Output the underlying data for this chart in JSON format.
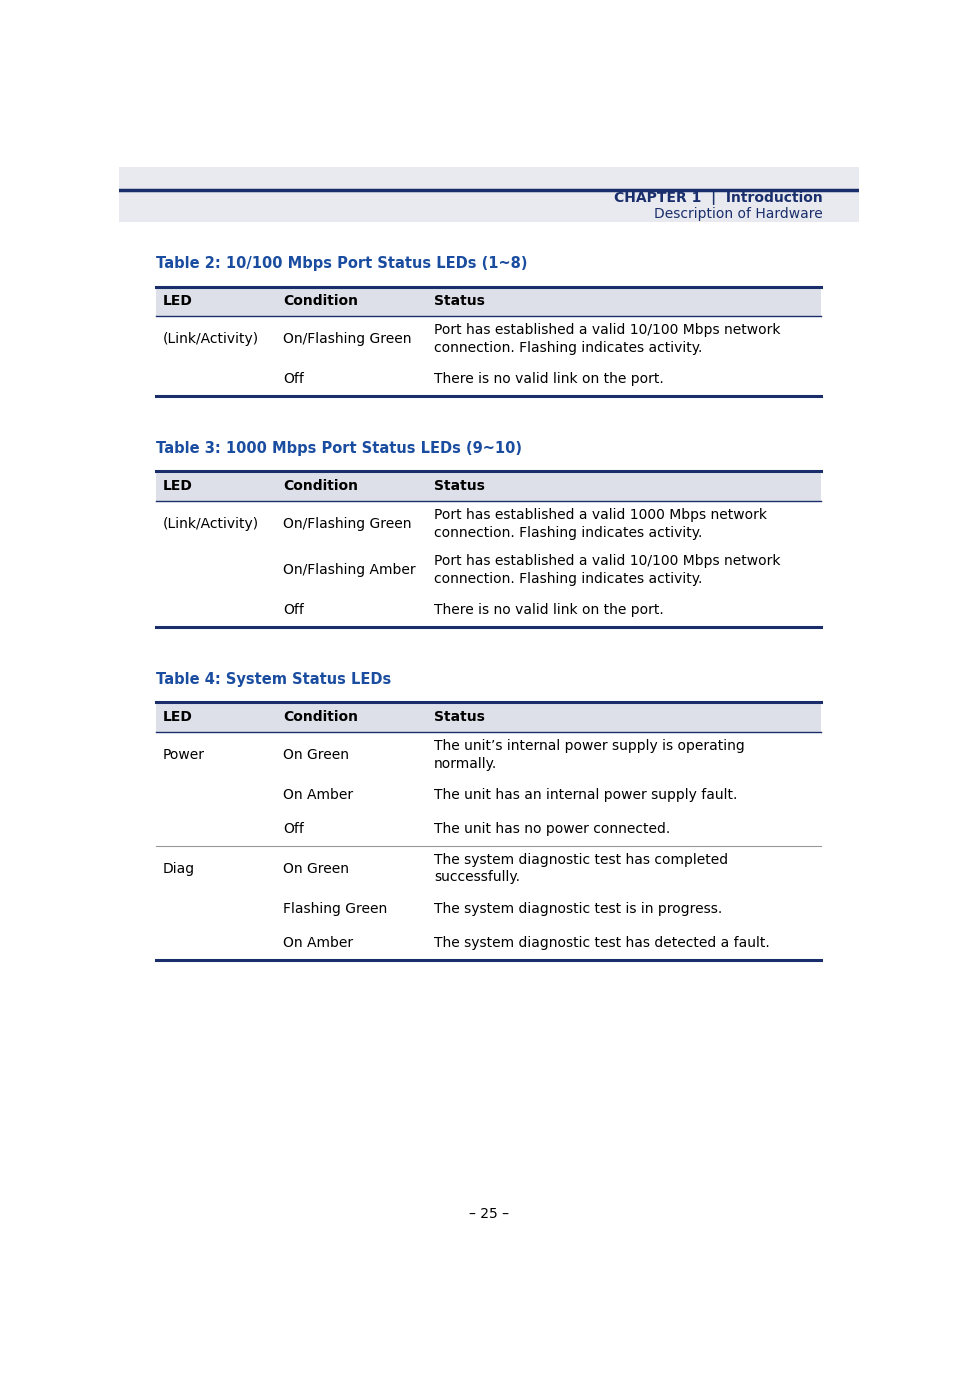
{
  "page_bg": "#ffffff",
  "header_bg": "#e8eaf0",
  "header_line_color": "#1a2e6b",
  "table_header_bg": "#dde0e8",
  "title_color": "#1a4da0",
  "body_color": "#000000",
  "header_text_color": "#1a2e6b",
  "chapter_label": "CHAPTER 1",
  "chapter_subtitle1": "Introduction",
  "chapter_subtitle2": "Description of Hardware",
  "page_number": "– 25 –",
  "table2_title": "Table 2: 10/100 Mbps Port Status LEDs (1~8)",
  "table2_headers": [
    "LED",
    "Condition",
    "Status"
  ],
  "table2_rows": [
    [
      "(Link/Activity)",
      "On/Flashing Green",
      "Port has established a valid 10/100 Mbps network\nconnection. Flashing indicates activity."
    ],
    [
      "",
      "Off",
      "There is no valid link on the port."
    ]
  ],
  "table3_title": "Table 3: 1000 Mbps Port Status LEDs (9~10)",
  "table3_headers": [
    "LED",
    "Condition",
    "Status"
  ],
  "table3_rows": [
    [
      "(Link/Activity)",
      "On/Flashing Green",
      "Port has established a valid 1000 Mbps network\nconnection. Flashing indicates activity."
    ],
    [
      "",
      "On/Flashing Amber",
      "Port has established a valid 10/100 Mbps network\nconnection. Flashing indicates activity."
    ],
    [
      "",
      "Off",
      "There is no valid link on the port."
    ]
  ],
  "table4_title": "Table 4: System Status LEDs",
  "table4_headers": [
    "LED",
    "Condition",
    "Status"
  ],
  "table4_rows": [
    [
      "Power",
      "On Green",
      "The unit’s internal power supply is operating\nnormally."
    ],
    [
      "",
      "On Amber",
      "The unit has an internal power supply fault."
    ],
    [
      "",
      "Off",
      "The unit has no power connected."
    ],
    [
      "Diag",
      "On Green",
      "The system diagnostic test has completed\nsuccessfully."
    ],
    [
      "",
      "Flashing Green",
      "The system diagnostic test is in progress."
    ],
    [
      "",
      "On Amber",
      "The system diagnostic test has detected a fault."
    ]
  ],
  "table4_divider_rows": [
    3
  ]
}
